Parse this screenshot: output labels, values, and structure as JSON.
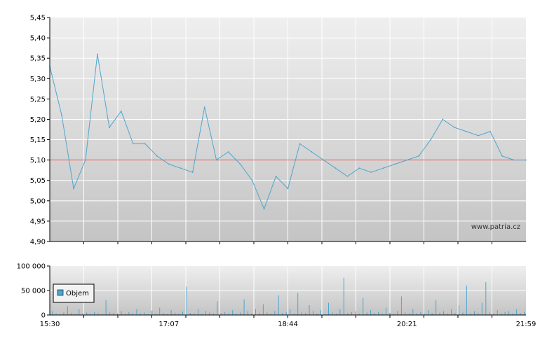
{
  "watermark": "www.patria.cz",
  "colors": {
    "price_line": "#4ea6cf",
    "reference_line": "#e05050",
    "volume_bar": "#4ea6cf",
    "grid": "#ffffff",
    "bg_top": "#efefef",
    "bg_bottom": "#c4c4c4"
  },
  "chart_data": [
    {
      "type": "line",
      "title": "",
      "xlabel": "",
      "ylabel": "",
      "ylim": [
        4.9,
        5.45
      ],
      "yticks": [
        "5,45",
        "5,40",
        "5,35",
        "5,30",
        "5,25",
        "5,20",
        "5,15",
        "5,10",
        "5,05",
        "5,00",
        "4,95",
        "4,90"
      ],
      "reference_value": 5.1,
      "grid": true,
      "x": [
        "15:30",
        "15:40",
        "15:50",
        "16:00",
        "16:10",
        "16:20",
        "16:30",
        "16:40",
        "16:50",
        "17:00",
        "17:07",
        "17:20",
        "17:30",
        "17:40",
        "17:50",
        "18:00",
        "18:10",
        "18:20",
        "18:30",
        "18:40",
        "18:44",
        "18:55",
        "19:05",
        "19:15",
        "19:25",
        "19:35",
        "19:45",
        "19:55",
        "20:05",
        "20:15",
        "20:21",
        "20:35",
        "20:45",
        "20:55",
        "21:05",
        "21:15",
        "21:25",
        "21:35",
        "21:45",
        "21:50",
        "21:59"
      ],
      "series": [
        {
          "values": [
            5.33,
            5.21,
            5.03,
            5.1,
            5.36,
            5.18,
            5.22,
            5.14,
            5.14,
            5.11,
            5.09,
            5.08,
            5.07,
            5.23,
            5.1,
            5.12,
            5.09,
            5.05,
            4.98,
            5.06,
            5.03,
            5.14,
            5.12,
            5.1,
            5.08,
            5.06,
            5.08,
            5.07,
            5.08,
            5.09,
            5.1,
            5.11,
            5.15,
            5.2,
            5.18,
            5.17,
            5.16,
            5.17,
            5.11,
            5.1,
            5.1
          ]
        }
      ]
    },
    {
      "type": "bar",
      "title": "",
      "xlabel": "",
      "ylabel": "",
      "ylim": [
        0,
        100000
      ],
      "yticks": [
        "100 000",
        "50 000",
        "0"
      ],
      "xticks": [
        "15:30",
        "17:07",
        "18:44",
        "20:21",
        "21:59"
      ],
      "legend": "Objem",
      "legend_position": "bottom-left",
      "grid": true,
      "series": [
        {
          "name": "Objem",
          "values": [
            8000,
            3000,
            2000,
            5000,
            18000,
            4000,
            2000,
            12000,
            3000,
            5000,
            2000,
            6000,
            3000,
            2000,
            30000,
            5000,
            4000,
            3000,
            8000,
            2000,
            6000,
            4000,
            12000,
            3000,
            5000,
            2000,
            9000,
            3000,
            15000,
            4000,
            2000,
            10000,
            5000,
            3000,
            7000,
            58000,
            4000,
            3000,
            12000,
            2000,
            8000,
            5000,
            3000,
            28000,
            4000,
            6000,
            3000,
            10000,
            2000,
            5000,
            32000,
            8000,
            3000,
            12000,
            4000,
            22000,
            5000,
            3000,
            8000,
            40000,
            4000,
            6000,
            12000,
            3000,
            45000,
            5000,
            4000,
            20000,
            8000,
            3000,
            10000,
            2000,
            25000,
            5000,
            3000,
            12000,
            76000,
            4000,
            6000,
            8000,
            3000,
            35000,
            5000,
            10000,
            4000,
            6000,
            3000,
            15000,
            4000,
            2000,
            8000,
            38000,
            5000,
            3000,
            12000,
            4000,
            6000,
            3000,
            10000,
            4000,
            30000,
            5000,
            8000,
            3000,
            12000,
            4000,
            20000,
            5000,
            60000,
            3000,
            8000,
            4000,
            25000,
            67000,
            5000,
            3000,
            10000,
            4000,
            6000,
            8000,
            3000,
            12000,
            4000,
            6000
          ]
        }
      ]
    }
  ]
}
